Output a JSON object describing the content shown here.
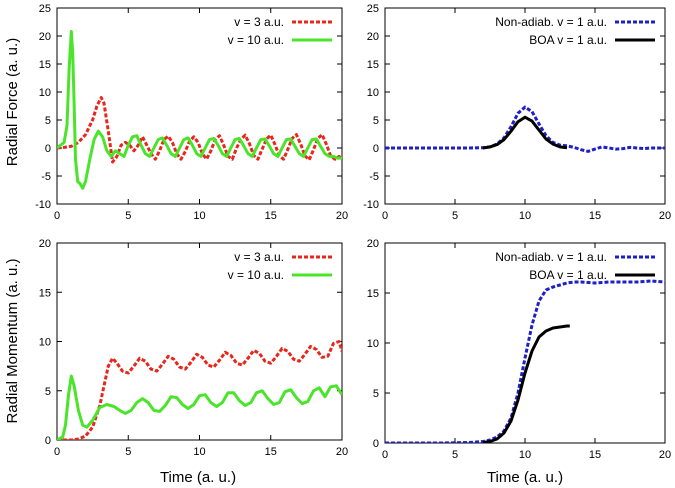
{
  "figure": {
    "xlabel": "Time (a. u.)",
    "ylabel_top": "Radial Force (a. u.)",
    "ylabel_bottom": "Radial Momentum (a. u.)"
  },
  "chart_data": [
    {
      "id": "force-left",
      "type": "line",
      "xlim": [
        0,
        20
      ],
      "ylim": [
        -10,
        25
      ],
      "xticks": [
        0,
        5,
        10,
        15,
        20
      ],
      "yticks": [
        -10,
        -5,
        0,
        5,
        10,
        15,
        20,
        25
      ],
      "ylabel": "Radial Force (a. u.)",
      "xlabel": "",
      "legend": "top-right",
      "series": [
        {
          "name": "v = 3 a.u.",
          "color": "#e8261c",
          "dash": "dashed",
          "x": [
            0,
            0.5,
            1.0,
            1.5,
            2.0,
            2.5,
            2.8,
            3.1,
            3.3,
            3.6,
            3.9,
            4.2,
            4.5,
            4.8,
            5.1,
            5.4,
            5.7,
            6.0,
            6.3,
            6.6,
            6.9,
            7.2,
            7.5,
            7.8,
            8.1,
            8.4,
            8.7,
            9.0,
            9.3,
            9.6,
            9.9,
            10.2,
            10.5,
            10.8,
            11.1,
            11.4,
            11.7,
            12.0,
            12.3,
            12.6,
            12.9,
            13.2,
            13.5,
            13.8,
            14.1,
            14.4,
            14.7,
            15.0,
            15.3,
            15.6,
            15.9,
            16.2,
            16.5,
            16.8,
            17.1,
            17.4,
            17.7,
            18.0,
            18.3,
            18.6,
            18.9,
            19.2,
            19.5,
            19.8,
            20.0
          ],
          "y": [
            0,
            0.1,
            0.3,
            1.0,
            2.4,
            5.0,
            7.5,
            9.0,
            8.0,
            3.0,
            -2.5,
            -1.5,
            0.5,
            1.0,
            0.5,
            -0.5,
            0.5,
            2.0,
            0.5,
            -1.0,
            -2.0,
            -0.5,
            1.5,
            2.1,
            1.0,
            -1.0,
            -2.0,
            -0.6,
            1.2,
            2.0,
            1.0,
            -1.0,
            -2.0,
            -0.5,
            1.5,
            2.2,
            0.5,
            -1.5,
            -2.0,
            0,
            1.5,
            2.3,
            0.8,
            -1.3,
            -2.0,
            -0.2,
            1.6,
            2.3,
            0.6,
            -1.4,
            -2.0,
            -0.2,
            1.7,
            2.4,
            0.7,
            -1.4,
            -2.1,
            -0.3,
            1.7,
            2.4,
            0.7,
            -1.4,
            -2.0,
            -1.5,
            -2.0
          ]
        },
        {
          "name": "v = 10 a.u.",
          "color": "#4ae42a",
          "dash": "solid",
          "x": [
            0,
            0.5,
            0.7,
            0.85,
            1.0,
            1.1,
            1.2,
            1.3,
            1.45,
            1.6,
            1.8,
            2.0,
            2.3,
            2.6,
            2.9,
            3.2,
            3.5,
            3.8,
            4.1,
            4.4,
            4.7,
            5.0,
            5.3,
            5.6,
            5.9,
            6.2,
            6.5,
            6.8,
            7.1,
            7.4,
            7.7,
            8.0,
            8.3,
            8.6,
            8.9,
            9.2,
            9.5,
            9.8,
            10.1,
            10.4,
            10.7,
            11.0,
            11.3,
            11.6,
            11.9,
            12.2,
            12.5,
            12.8,
            13.1,
            13.4,
            13.7,
            14.0,
            14.3,
            14.6,
            14.9,
            15.2,
            15.5,
            15.8,
            16.1,
            16.4,
            16.7,
            17.0,
            17.3,
            17.6,
            17.9,
            18.2,
            18.5,
            18.8,
            19.1,
            19.4,
            19.7,
            20.0
          ],
          "y": [
            0,
            1.0,
            4.0,
            14.0,
            20.8,
            17.0,
            8.0,
            -2.0,
            -6.0,
            -6.3,
            -7.2,
            -6.0,
            -2.0,
            1.5,
            3.0,
            2.0,
            -0.5,
            -1.5,
            -0.5,
            -1.0,
            -1.5,
            0.5,
            2.0,
            2.2,
            0.5,
            -1.0,
            -1.5,
            0,
            1.5,
            1.8,
            0.5,
            -1.0,
            -1.5,
            0,
            1.5,
            1.8,
            0.5,
            -1.0,
            -1.5,
            0,
            1.5,
            1.7,
            0.5,
            -1.0,
            -1.5,
            0,
            1.5,
            1.7,
            0.4,
            -1.0,
            -1.5,
            0,
            1.5,
            1.6,
            0.4,
            -1.0,
            -1.5,
            0,
            1.5,
            1.6,
            0.3,
            -1.0,
            -1.5,
            0,
            1.5,
            1.6,
            0.3,
            -1.0,
            -1.5,
            -1.5,
            -1.8,
            -1.8
          ]
        }
      ]
    },
    {
      "id": "force-right",
      "type": "line",
      "xlim": [
        0,
        20
      ],
      "ylim": [
        -10,
        25
      ],
      "xticks": [
        0,
        5,
        10,
        15,
        20
      ],
      "yticks": [
        -10,
        -5,
        0,
        5,
        10,
        15,
        20,
        25
      ],
      "ylabel": "",
      "xlabel": "",
      "legend": "top-right",
      "series": [
        {
          "name": "Non-adiab. v = 1 a.u.",
          "color": "#1f1fc8",
          "dash": "dashed",
          "x": [
            0,
            2,
            4,
            6,
            7,
            7.5,
            8,
            8.5,
            9,
            9.5,
            10,
            10.5,
            11,
            11.5,
            12,
            12.5,
            13,
            13.5,
            14,
            14.5,
            15,
            15.5,
            16,
            16.5,
            17,
            17.5,
            18,
            18.5,
            19,
            19.5,
            20
          ],
          "y": [
            0,
            0,
            0,
            0,
            0.05,
            0.2,
            0.7,
            1.8,
            3.8,
            6.2,
            7.3,
            6.5,
            4.3,
            2.2,
            1.0,
            0.5,
            0.4,
            0.1,
            -0.3,
            -0.6,
            -0.2,
            0.2,
            0,
            -0.2,
            -0.1,
            0.1,
            0,
            -0.1,
            0,
            0,
            0
          ]
        },
        {
          "name": "BOA v = 1 a.u.",
          "color": "#000000",
          "dash": "solid",
          "x": [
            7,
            7.5,
            8,
            8.5,
            9,
            9.5,
            10,
            10.5,
            11,
            11.5,
            12,
            12.5,
            13
          ],
          "y": [
            0,
            0.2,
            0.6,
            1.5,
            3.0,
            4.7,
            5.5,
            4.8,
            3.2,
            1.6,
            0.7,
            0.2,
            0.05
          ]
        }
      ]
    },
    {
      "id": "momentum-left",
      "type": "line",
      "xlim": [
        0,
        20
      ],
      "ylim": [
        0,
        20
      ],
      "xticks": [
        0,
        5,
        10,
        15,
        20
      ],
      "yticks": [
        0,
        5,
        10,
        15,
        20
      ],
      "ylabel": "Radial Momentum (a. u.)",
      "xlabel": "Time (a. u.)",
      "legend": "top-right",
      "series": [
        {
          "name": "v = 3 a.u.",
          "color": "#e8261c",
          "dash": "dashed",
          "x": [
            0,
            1.0,
            1.5,
            2.0,
            2.5,
            3.0,
            3.3,
            3.6,
            3.9,
            4.2,
            4.6,
            5.0,
            5.4,
            5.8,
            6.2,
            6.6,
            7.0,
            7.4,
            7.8,
            8.2,
            8.6,
            9.0,
            9.4,
            9.8,
            10.2,
            10.6,
            11.0,
            11.4,
            11.8,
            12.2,
            12.6,
            13.0,
            13.4,
            13.8,
            14.2,
            14.6,
            15.0,
            15.4,
            15.8,
            16.2,
            16.6,
            17.0,
            17.4,
            17.8,
            18.2,
            18.6,
            19.0,
            19.4,
            19.8,
            20.0
          ],
          "y": [
            0,
            0,
            0.1,
            0.4,
            1.3,
            3.5,
            5.5,
            7.5,
            8.3,
            7.8,
            7.0,
            6.8,
            7.5,
            8.3,
            8.0,
            7.2,
            7.0,
            7.7,
            8.5,
            8.2,
            7.4,
            7.2,
            7.9,
            8.7,
            8.4,
            7.6,
            7.4,
            8.1,
            8.9,
            8.6,
            7.8,
            7.6,
            8.3,
            9.1,
            8.8,
            8.0,
            7.8,
            8.5,
            9.3,
            9.0,
            8.2,
            8.0,
            8.7,
            9.5,
            9.2,
            8.4,
            8.5,
            9.8,
            10.0,
            9.0
          ]
        },
        {
          "name": "v = 10 a.u.",
          "color": "#4ae42a",
          "dash": "solid",
          "x": [
            0,
            0.4,
            0.6,
            0.8,
            1.0,
            1.2,
            1.5,
            1.8,
            2.1,
            2.5,
            3.0,
            3.5,
            4.0,
            4.4,
            4.8,
            5.2,
            5.6,
            6.0,
            6.4,
            6.8,
            7.2,
            7.6,
            8.0,
            8.4,
            8.8,
            9.2,
            9.6,
            10.0,
            10.4,
            10.8,
            11.2,
            11.6,
            12.0,
            12.4,
            12.8,
            13.2,
            13.6,
            14.0,
            14.4,
            14.8,
            15.2,
            15.6,
            16.0,
            16.4,
            16.8,
            17.2,
            17.6,
            18.0,
            18.4,
            18.8,
            19.2,
            19.6,
            20.0
          ],
          "y": [
            0,
            0.3,
            1.5,
            4.5,
            6.5,
            5.5,
            3.0,
            1.5,
            1.3,
            2.0,
            3.3,
            3.6,
            3.4,
            3.0,
            2.7,
            3.0,
            3.8,
            4.2,
            3.8,
            3.0,
            2.9,
            3.5,
            4.4,
            4.3,
            3.6,
            3.2,
            3.6,
            4.5,
            4.6,
            3.8,
            3.4,
            3.8,
            4.8,
            4.8,
            4.0,
            3.5,
            3.8,
            4.8,
            5.0,
            4.2,
            3.6,
            3.8,
            4.9,
            5.1,
            4.3,
            3.7,
            3.9,
            5.0,
            5.3,
            4.4,
            5.4,
            5.5,
            4.6
          ]
        }
      ]
    },
    {
      "id": "momentum-right",
      "type": "line",
      "xlim": [
        0,
        20
      ],
      "ylim": [
        0,
        20
      ],
      "xticks": [
        0,
        5,
        10,
        15,
        20
      ],
      "yticks": [
        0,
        5,
        10,
        15,
        20
      ],
      "ylabel": "",
      "xlabel": "Time (a. u.)",
      "legend": "top-right",
      "series": [
        {
          "name": "Non-adiab. v = 1 a.u.",
          "color": "#1f1fc8",
          "dash": "dashed",
          "x": [
            0,
            2,
            4,
            6,
            7,
            7.5,
            8,
            8.5,
            9,
            9.5,
            10,
            10.5,
            11,
            11.5,
            12,
            12.5,
            13,
            13.5,
            14,
            15,
            16,
            17,
            18,
            19,
            20
          ],
          "y": [
            0,
            0,
            0,
            0.05,
            0.15,
            0.3,
            0.6,
            1.2,
            2.5,
            5.0,
            8.5,
            11.8,
            14.2,
            15.3,
            15.6,
            15.8,
            16.0,
            16.1,
            16.1,
            16.0,
            16.1,
            16.1,
            16.1,
            16.2,
            16.1
          ]
        },
        {
          "name": "BOA v = 1 a.u.",
          "color": "#000000",
          "dash": "solid",
          "x": [
            7,
            7.5,
            8,
            8.5,
            9,
            9.5,
            10,
            10.5,
            11,
            11.5,
            12,
            12.5,
            13,
            13.2
          ],
          "y": [
            0.05,
            0.15,
            0.4,
            1.0,
            2.2,
            4.3,
            7.0,
            9.2,
            10.6,
            11.2,
            11.5,
            11.6,
            11.7,
            11.7
          ]
        }
      ]
    }
  ]
}
